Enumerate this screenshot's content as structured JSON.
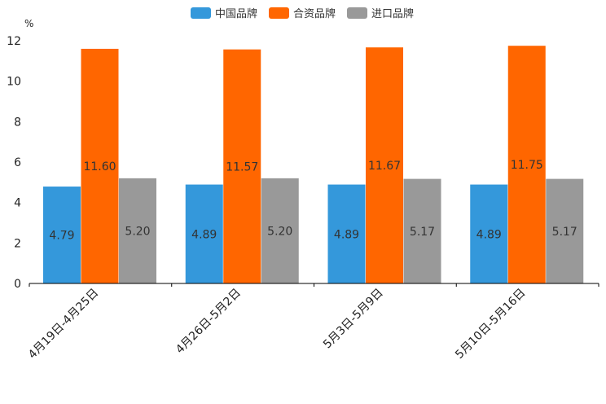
{
  "chart_data": {
    "type": "bar",
    "unit": "%",
    "categories": [
      "4月19日-4月25日",
      "4月26日-5月2日",
      "5月3日-5月9日",
      "5月10日-5月16日"
    ],
    "series": [
      {
        "name": "中国品牌",
        "color": "#3498db",
        "values": [
          4.79,
          4.89,
          4.89,
          4.89
        ],
        "labels": [
          "4.79",
          "4.89",
          "4.89",
          "4.89"
        ]
      },
      {
        "name": "合资品牌",
        "color": "#ff6600",
        "values": [
          11.6,
          11.57,
          11.67,
          11.75
        ],
        "labels": [
          "11.60",
          "11.57",
          "11.67",
          "11.75"
        ]
      },
      {
        "name": "进口品牌",
        "color": "#999999",
        "values": [
          5.2,
          5.2,
          5.17,
          5.17
        ],
        "labels": [
          "5.20",
          "5.20",
          "5.17",
          "5.17"
        ]
      }
    ],
    "ylim": [
      0,
      12
    ],
    "yticks": [
      "0",
      "2",
      "4",
      "6",
      "8",
      "10",
      "12"
    ],
    "legend_position": "top-center",
    "grid": false
  }
}
